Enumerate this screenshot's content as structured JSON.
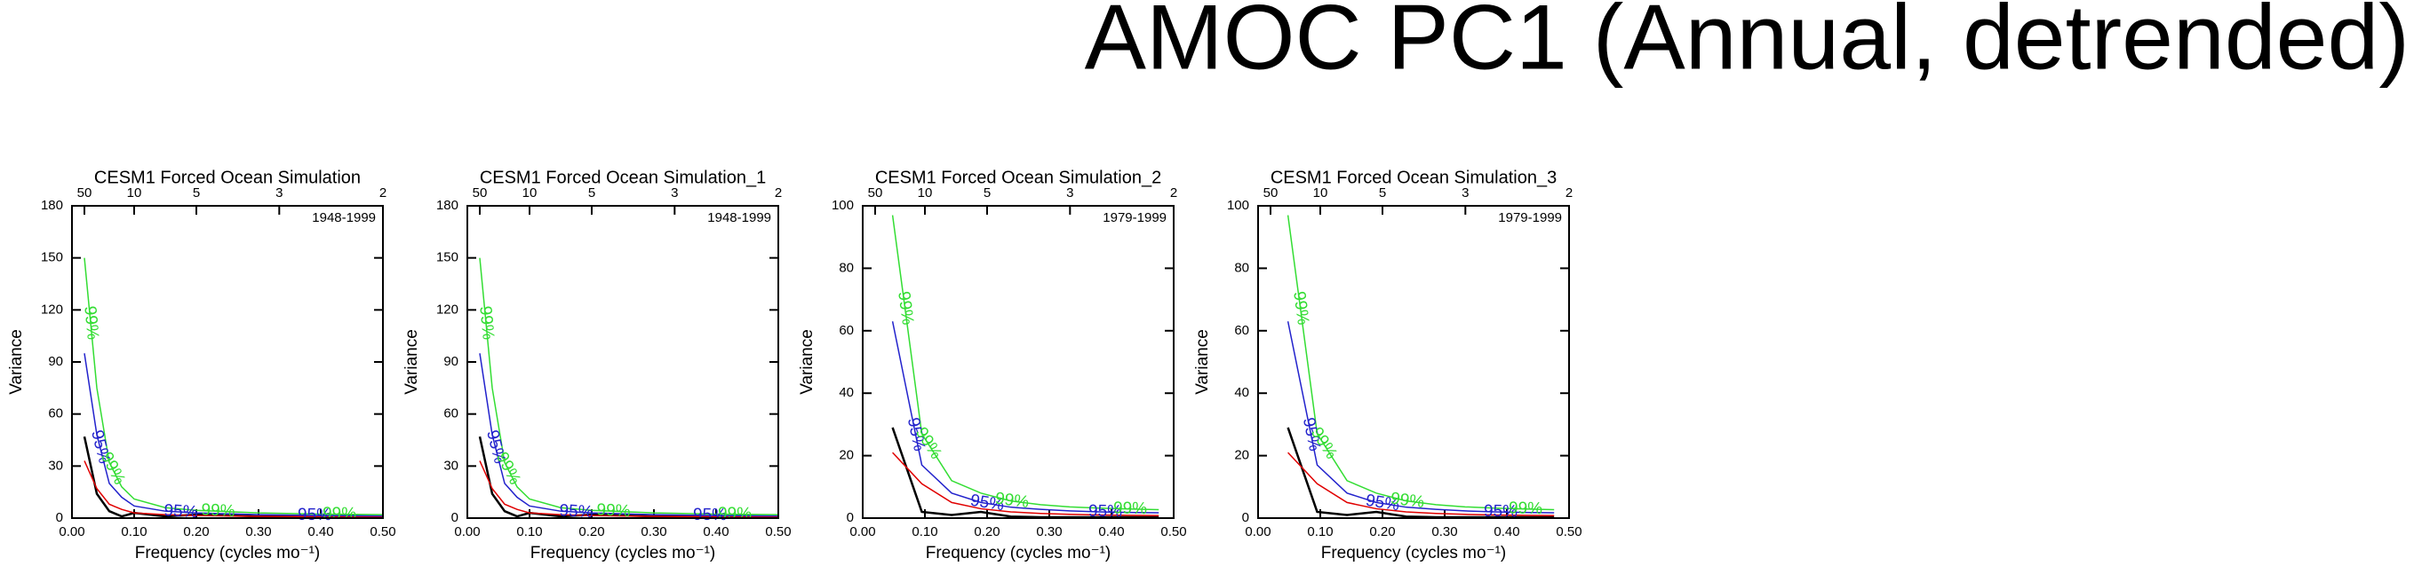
{
  "title": "AMOC PC1 (Annual, detrended)",
  "chart_data": [
    {
      "type": "line",
      "title": "CESM1 Forced Ocean Simulation",
      "annotation": "1948-1999",
      "x_label": "Frequency (cycles mo⁻¹)",
      "y_label": "Variance",
      "x": [
        0.02,
        0.04,
        0.06,
        0.08,
        0.1,
        0.15,
        0.2,
        0.3,
        0.4,
        0.5
      ],
      "series": [
        {
          "color": "#000000",
          "values": [
            47,
            14,
            4,
            1,
            3,
            1,
            2,
            1,
            1,
            0.5
          ]
        },
        {
          "color": "#e00000",
          "values": [
            33,
            17,
            8,
            5,
            3,
            2,
            1.5,
            1,
            0.8,
            0.7
          ]
        },
        {
          "name": "95%",
          "color": "#2222cc",
          "values": [
            95,
            48,
            20,
            12,
            7,
            4,
            3,
            2,
            1.5,
            1.3
          ]
        },
        {
          "name": "99%",
          "color": "#33dd33",
          "values": [
            150,
            75,
            32,
            18,
            11,
            6,
            4.5,
            3,
            2.3,
            2
          ]
        }
      ],
      "xlim": [
        0,
        0.5
      ],
      "ylim": [
        0,
        180
      ],
      "xticks": [
        {
          "value": 0,
          "label": "0.00"
        },
        {
          "value": 0.1,
          "label": "0.10"
        },
        {
          "value": 0.2,
          "label": "0.20"
        },
        {
          "value": 0.3,
          "label": "0.30"
        },
        {
          "value": 0.4,
          "label": "0.40"
        },
        {
          "value": 0.5,
          "label": "0.50"
        }
      ],
      "yticks": [
        0,
        30,
        60,
        90,
        120,
        150,
        180
      ],
      "x2ticks": [
        {
          "value": 0.02,
          "label": "50"
        },
        {
          "value": 0.1,
          "label": "10"
        },
        {
          "value": 0.2,
          "label": "5"
        },
        {
          "value": 0.3333,
          "label": "3"
        },
        {
          "value": 0.5,
          "label": "2"
        }
      ]
    },
    {
      "type": "line",
      "title": "CESM1 Forced Ocean Simulation_1",
      "annotation": "1948-1999",
      "x_label": "Frequency (cycles mo⁻¹)",
      "y_label": "Variance",
      "x": [
        0.02,
        0.04,
        0.06,
        0.08,
        0.1,
        0.15,
        0.2,
        0.3,
        0.4,
        0.5
      ],
      "series": [
        {
          "color": "#000000",
          "values": [
            47,
            14,
            4,
            1,
            3,
            1,
            2,
            1,
            1,
            0.5
          ]
        },
        {
          "color": "#e00000",
          "values": [
            33,
            17,
            8,
            5,
            3,
            2,
            1.5,
            1,
            0.8,
            0.7
          ]
        },
        {
          "name": "95%",
          "color": "#2222cc",
          "values": [
            95,
            48,
            20,
            12,
            7,
            4,
            3,
            2,
            1.5,
            1.3
          ]
        },
        {
          "name": "99%",
          "color": "#33dd33",
          "values": [
            150,
            75,
            32,
            18,
            11,
            6,
            4.5,
            3,
            2.3,
            2
          ]
        }
      ],
      "xlim": [
        0,
        0.5
      ],
      "ylim": [
        0,
        180
      ],
      "xticks": [
        {
          "value": 0,
          "label": "0.00"
        },
        {
          "value": 0.1,
          "label": "0.10"
        },
        {
          "value": 0.2,
          "label": "0.20"
        },
        {
          "value": 0.3,
          "label": "0.30"
        },
        {
          "value": 0.4,
          "label": "0.40"
        },
        {
          "value": 0.5,
          "label": "0.50"
        }
      ],
      "yticks": [
        0,
        30,
        60,
        90,
        120,
        150,
        180
      ],
      "x2ticks": [
        {
          "value": 0.02,
          "label": "50"
        },
        {
          "value": 0.1,
          "label": "10"
        },
        {
          "value": 0.2,
          "label": "5"
        },
        {
          "value": 0.3333,
          "label": "3"
        },
        {
          "value": 0.5,
          "label": "2"
        }
      ]
    },
    {
      "type": "line",
      "title": "CESM1 Forced Ocean Simulation_2",
      "annotation": "1979-1999",
      "x_label": "Frequency (cycles mo⁻¹)",
      "y_label": "Variance",
      "x": [
        0.048,
        0.095,
        0.143,
        0.19,
        0.238,
        0.286,
        0.333,
        0.381,
        0.429,
        0.476
      ],
      "series": [
        {
          "color": "#000000",
          "values": [
            29,
            2,
            1,
            2,
            0.5,
            0.3,
            0.3,
            0.3,
            0.3,
            0.3
          ]
        },
        {
          "color": "#e00000",
          "values": [
            21,
            11,
            5,
            3,
            2,
            1.5,
            1.2,
            1,
            0.9,
            0.8
          ]
        },
        {
          "name": "95%",
          "color": "#2222cc",
          "values": [
            63,
            17,
            8,
            5,
            3.5,
            2.8,
            2.3,
            2,
            1.8,
            1.7
          ]
        },
        {
          "name": "99%",
          "color": "#33dd33",
          "values": [
            97,
            27,
            12,
            8,
            5.5,
            4.3,
            3.6,
            3.2,
            2.9,
            2.7
          ]
        }
      ],
      "xlim": [
        0,
        0.5
      ],
      "ylim": [
        0,
        100
      ],
      "xticks": [
        {
          "value": 0,
          "label": "0.00"
        },
        {
          "value": 0.1,
          "label": "0.10"
        },
        {
          "value": 0.2,
          "label": "0.20"
        },
        {
          "value": 0.3,
          "label": "0.30"
        },
        {
          "value": 0.4,
          "label": "0.40"
        },
        {
          "value": 0.5,
          "label": "0.50"
        }
      ],
      "yticks": [
        0,
        20,
        40,
        60,
        80,
        100
      ],
      "x2ticks": [
        {
          "value": 0.02,
          "label": "50"
        },
        {
          "value": 0.1,
          "label": "10"
        },
        {
          "value": 0.2,
          "label": "5"
        },
        {
          "value": 0.3333,
          "label": "3"
        },
        {
          "value": 0.5,
          "label": "2"
        }
      ]
    },
    {
      "type": "line",
      "title": "CESM1 Forced Ocean Simulation_3",
      "annotation": "1979-1999",
      "x_label": "Frequency (cycles mo⁻¹)",
      "y_label": "Variance",
      "x": [
        0.048,
        0.095,
        0.143,
        0.19,
        0.238,
        0.286,
        0.333,
        0.381,
        0.429,
        0.476
      ],
      "series": [
        {
          "color": "#000000",
          "values": [
            29,
            2,
            1,
            2,
            0.5,
            0.3,
            0.3,
            0.3,
            0.3,
            0.3
          ]
        },
        {
          "color": "#e00000",
          "values": [
            21,
            11,
            5,
            3,
            2,
            1.5,
            1.2,
            1,
            0.9,
            0.8
          ]
        },
        {
          "name": "95%",
          "color": "#2222cc",
          "values": [
            63,
            17,
            8,
            5,
            3.5,
            2.8,
            2.3,
            2,
            1.8,
            1.7
          ]
        },
        {
          "name": "99%",
          "color": "#33dd33",
          "values": [
            97,
            27,
            12,
            8,
            5.5,
            4.3,
            3.6,
            3.2,
            2.9,
            2.7
          ]
        }
      ],
      "xlim": [
        0,
        0.5
      ],
      "ylim": [
        0,
        100
      ],
      "xticks": [
        {
          "value": 0,
          "label": "0.00"
        },
        {
          "value": 0.1,
          "label": "0.10"
        },
        {
          "value": 0.2,
          "label": "0.20"
        },
        {
          "value": 0.3,
          "label": "0.30"
        },
        {
          "value": 0.4,
          "label": "0.40"
        },
        {
          "value": 0.5,
          "label": "0.50"
        }
      ],
      "yticks": [
        0,
        20,
        40,
        60,
        80,
        100
      ],
      "x2ticks": [
        {
          "value": 0.02,
          "label": "50"
        },
        {
          "value": 0.1,
          "label": "10"
        },
        {
          "value": 0.2,
          "label": "5"
        },
        {
          "value": 0.3333,
          "label": "3"
        },
        {
          "value": 0.5,
          "label": "2"
        }
      ]
    }
  ]
}
